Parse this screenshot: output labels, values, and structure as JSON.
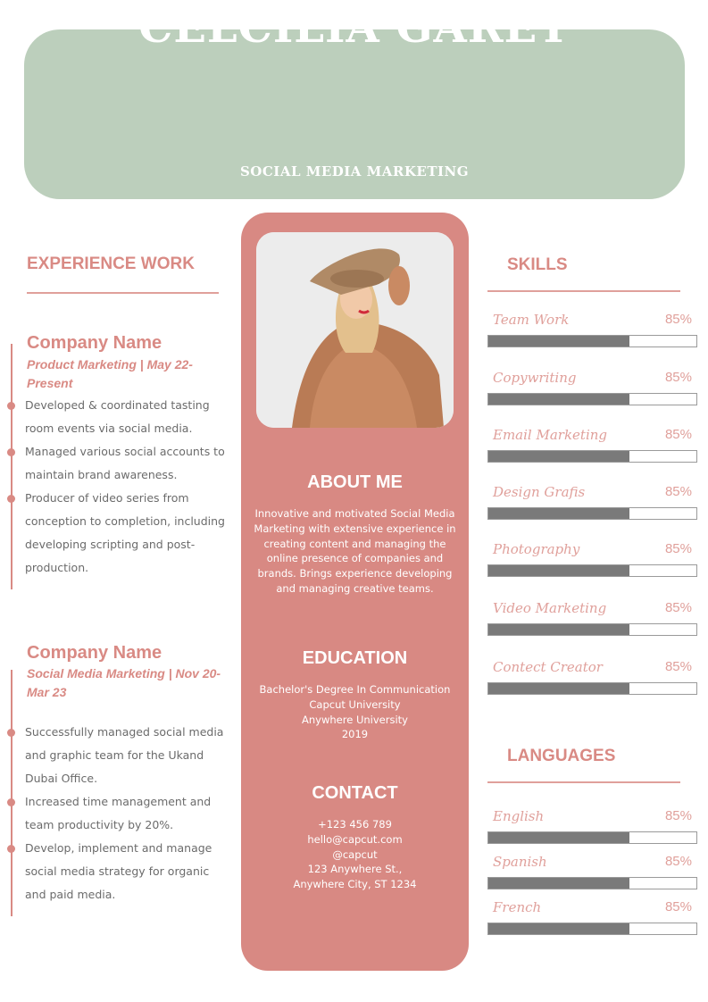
{
  "header": {
    "name": "CELCILIA GARET",
    "title": "SOCIAL MEDIA MARKETING"
  },
  "experience": {
    "heading": "EXPERIENCE WORK",
    "jobs": [
      {
        "company": "Company Name",
        "role": "Product Marketing | May 22-Present",
        "bullets": [
          "Developed & coordinated tasting room events via social media.",
          "Managed various social accounts to maintain brand awareness.",
          "Producer of video series from conception to completion, including developing scripting and post-production."
        ]
      },
      {
        "company": "Company Name",
        "role": "Social Media Marketing | Nov 20-Mar 23",
        "bullets": [
          "Successfully managed social media and graphic team for the Ukand Dubai Office.",
          "Increased time management and team productivity by 20%.",
          "Develop, implement and manage social media strategy for organic and paid media."
        ]
      }
    ]
  },
  "about": {
    "heading": "ABOUT ME",
    "text": "Innovative and motivated Social Media Marketing with extensive experience in creating content and managing the online presence of companies and brands. Brings experience developing and managing creative teams."
  },
  "education": {
    "heading": "EDUCATION",
    "lines": [
      "Bachelor's Degree In Communication",
      "Capcut University",
      "Anywhere University",
      "2019"
    ]
  },
  "contact": {
    "heading": "CONTACT",
    "lines": [
      "+123  456 789",
      "hello@capcut.com",
      "@capcut",
      "123 Anywhere St.,",
      "Anywhere City, ST 1234"
    ]
  },
  "skills": {
    "heading": "SKILLS",
    "items": [
      {
        "label": "Team Work",
        "pct": "85%",
        "fill": 0.68
      },
      {
        "label": "Copywriting",
        "pct": "85%",
        "fill": 0.68
      },
      {
        "label": "Email Marketing",
        "pct": "85%",
        "fill": 0.68
      },
      {
        "label": "Design Grafis",
        "pct": "85%",
        "fill": 0.68
      },
      {
        "label": "Photography",
        "pct": "85%",
        "fill": 0.68
      },
      {
        "label": "Video Marketing",
        "pct": "85%",
        "fill": 0.68
      },
      {
        "label": "Contect Creator",
        "pct": "85%",
        "fill": 0.68
      }
    ]
  },
  "languages": {
    "heading": "LANGUAGES",
    "items": [
      {
        "label": "English",
        "pct": "85%",
        "fill": 0.68
      },
      {
        "label": "Spanish",
        "pct": "85%",
        "fill": 0.68
      },
      {
        "label": "French",
        "pct": "85%",
        "fill": 0.68
      }
    ]
  },
  "colors": {
    "header": "#bccfbc",
    "accent": "#d98a84",
    "bar": "#7a7a7a"
  }
}
